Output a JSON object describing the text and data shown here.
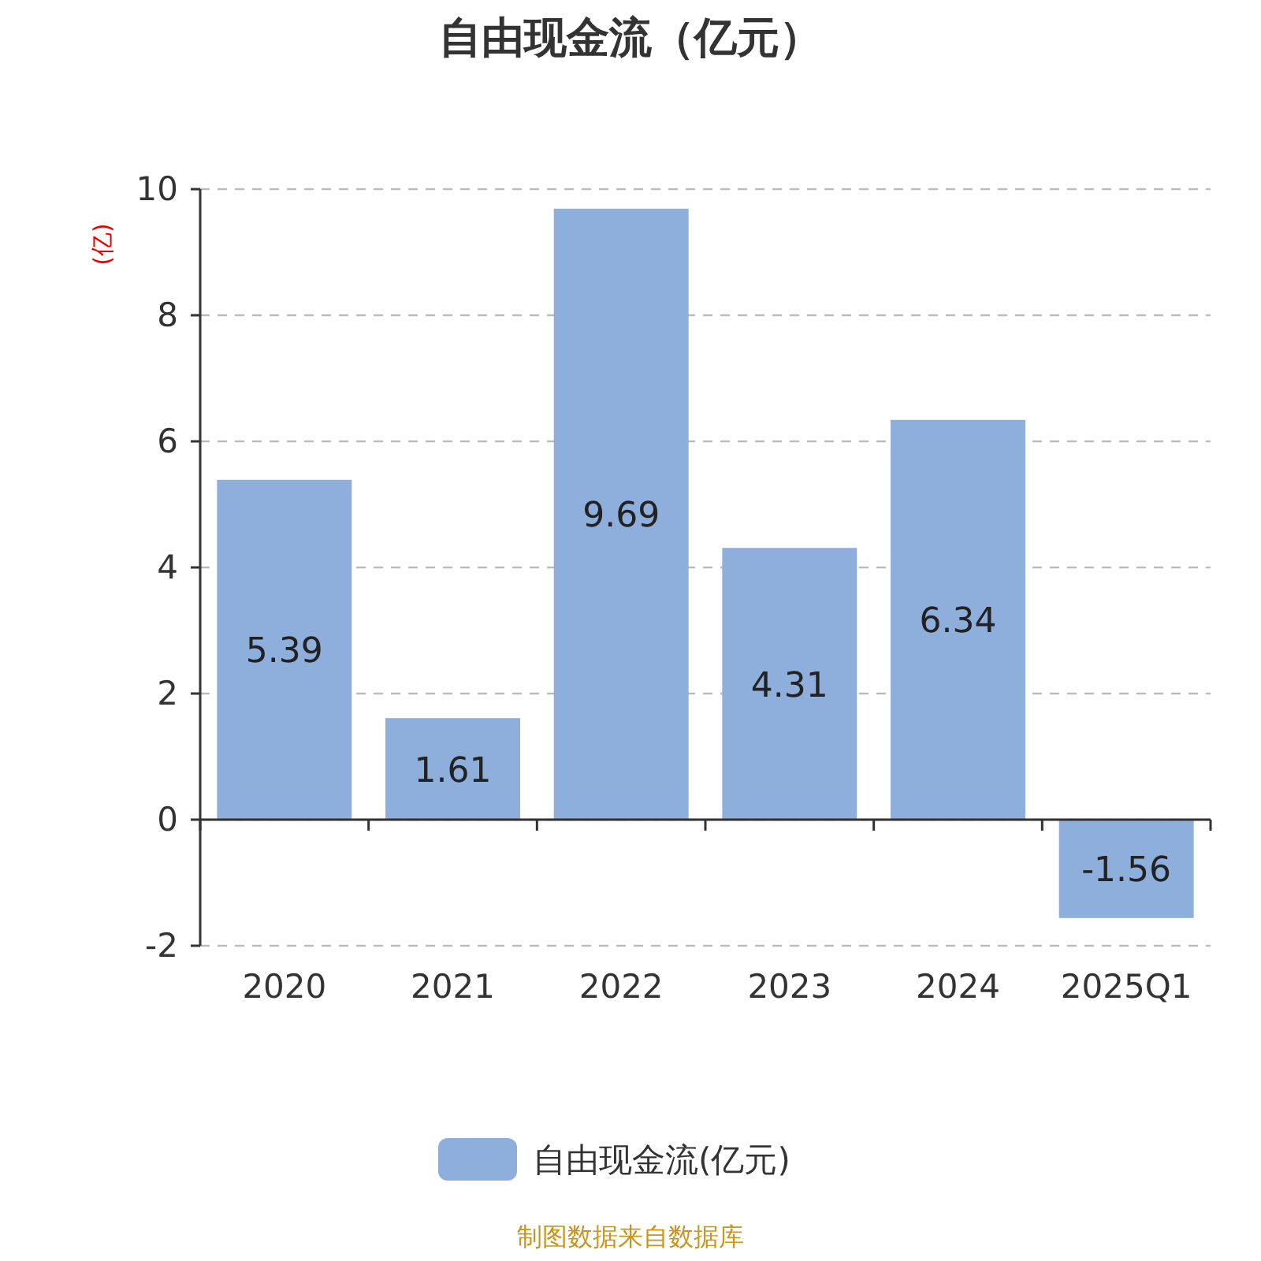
{
  "chart_data": {
    "type": "bar",
    "title": "自由现金流（亿元）",
    "ylabel": "(亿)",
    "categories": [
      "2020",
      "2021",
      "2022",
      "2023",
      "2024",
      "2025Q1"
    ],
    "series": [
      {
        "name": "自由现金流(亿元)",
        "color": "#8eaedb",
        "values": [
          5.39,
          1.61,
          9.69,
          4.31,
          6.34,
          -1.56
        ]
      }
    ],
    "ylim": [
      -2,
      10
    ],
    "yticks": [
      -2,
      0,
      2,
      4,
      6,
      8,
      10
    ],
    "grid": "y",
    "legend": "bottom",
    "data_labels": true,
    "annotations": [
      "制图数据来自数据库"
    ]
  }
}
